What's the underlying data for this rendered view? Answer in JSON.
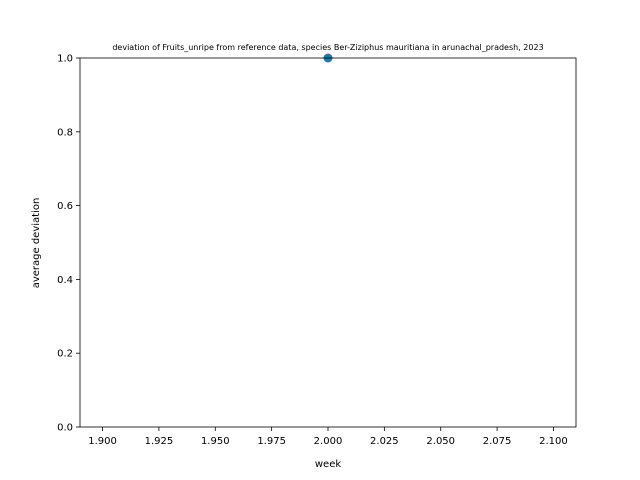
{
  "chart_data": {
    "type": "scatter",
    "title": "deviation of Fruits_unripe from reference data, species Ber-Ziziphus mauritiana in arunachal_pradesh, 2023",
    "xlabel": "week",
    "ylabel": "average deviation",
    "xlim": [
      1.89,
      2.11
    ],
    "ylim": [
      0.0,
      1.0
    ],
    "x_ticks": [
      "1.900",
      "1.925",
      "1.950",
      "1.975",
      "2.000",
      "2.025",
      "2.050",
      "2.075",
      "2.100"
    ],
    "y_ticks": [
      "0.0",
      "0.2",
      "0.4",
      "0.6",
      "0.8",
      "1.0"
    ],
    "x": [
      2.0
    ],
    "y": [
      1.0
    ],
    "point_color": "#1f77b4",
    "grid": false,
    "legend": "none"
  }
}
